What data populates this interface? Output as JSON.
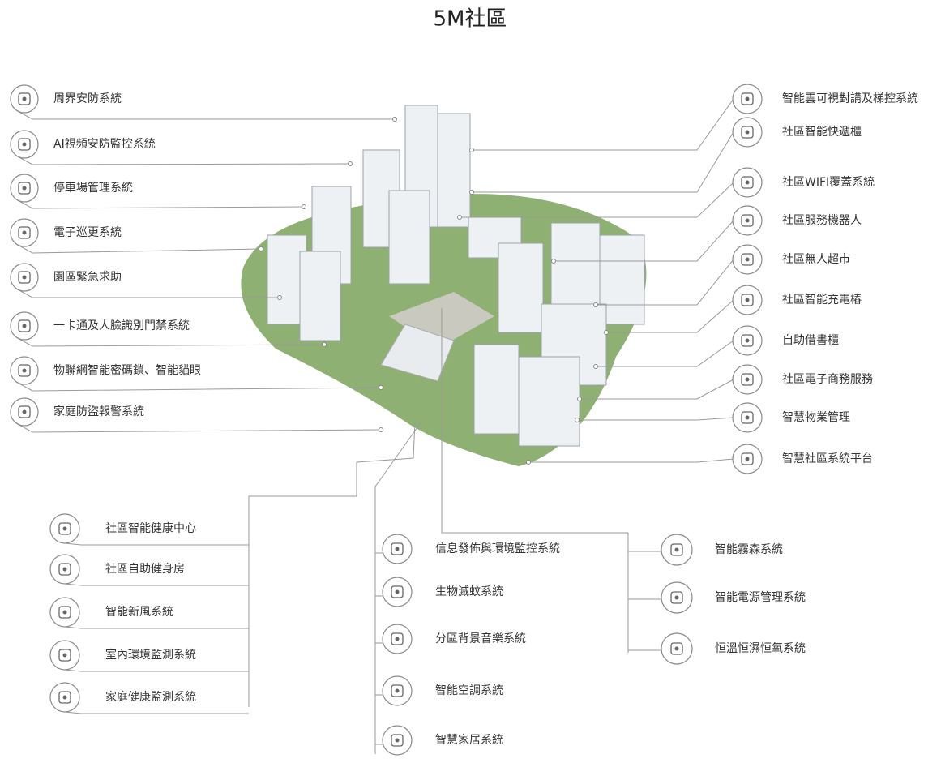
{
  "title": "5M社區",
  "left_items": [
    "周界安防系統",
    "AI視頻安防監控系統",
    "停車場管理系統",
    "電子巡更系統",
    "園區緊急求助",
    "一卡通及人臉識別門禁系統",
    "物聯網智能密碼鎖、智能貓眼",
    "家庭防盜報警系統"
  ],
  "right_items": [
    "智能雲可視對講及梯控系統",
    "社區智能快遞櫃",
    "社區WIFI覆蓋系統",
    "社區服務機器人",
    "社區無人超市",
    "社區智能充電樁",
    "自助借書櫃",
    "社區電子商務服務",
    "智慧物業管理",
    "智慧社區系統平台"
  ],
  "bottom_left": [
    "社區智能健康中心",
    "社區自助健身房",
    "智能新風系統",
    "室內環境監測系統",
    "家庭健康監測系統"
  ],
  "bottom_middle": [
    "信息發佈與環境監控系統",
    "生物滅蚊系統",
    "分區背景音樂系統",
    "智能空調系統",
    "智慧家居系統"
  ],
  "bottom_right": [
    "智能霧森系統",
    "智能電源管理系統",
    "恒溫恒濕恒氧系統"
  ]
}
